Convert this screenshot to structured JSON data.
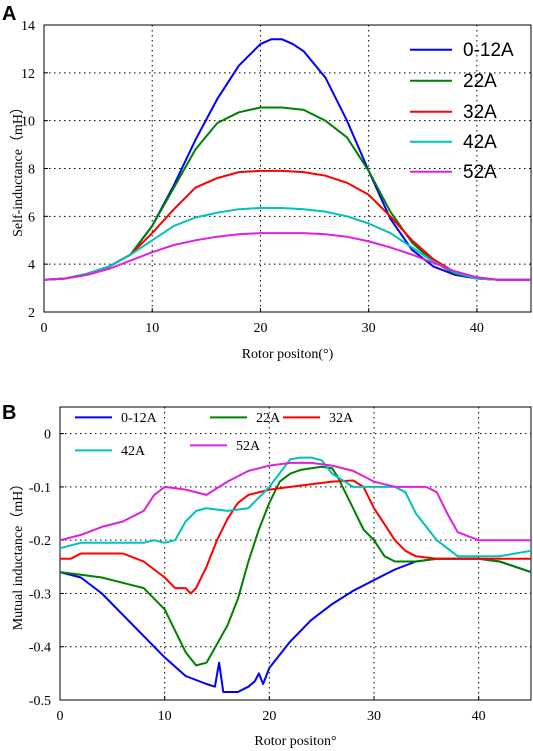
{
  "chart_data": [
    {
      "type": "line",
      "panel": "A",
      "xlabel": "Rotor positon(°)",
      "ylabel": "Self-inductance（mH）",
      "xlim": [
        0,
        45
      ],
      "ylim": [
        2,
        14
      ],
      "xticks": [
        0,
        10,
        20,
        30,
        40
      ],
      "yticks": [
        2,
        4,
        6,
        8,
        10,
        12,
        14
      ],
      "grid": true,
      "legend_position": "top-right",
      "series": [
        {
          "name": "0-12A",
          "color": "#0000ff",
          "x": [
            0,
            2,
            4,
            6,
            8,
            10,
            12,
            14,
            16,
            18,
            20,
            21,
            22,
            23,
            24,
            26,
            28,
            30,
            32,
            34,
            36,
            38,
            40,
            42,
            45
          ],
          "y": [
            3.35,
            3.4,
            3.6,
            3.9,
            4.4,
            5.6,
            7.3,
            9.2,
            10.9,
            12.3,
            13.2,
            13.4,
            13.4,
            13.2,
            12.9,
            11.8,
            10.0,
            7.9,
            5.9,
            4.6,
            3.9,
            3.55,
            3.4,
            3.35,
            3.35
          ]
        },
        {
          "name": "22A",
          "color": "#008000",
          "x": [
            0,
            2,
            4,
            6,
            8,
            10,
            12,
            14,
            16,
            18,
            20,
            22,
            24,
            26,
            28,
            30,
            32,
            34,
            36,
            38,
            40,
            42,
            45
          ],
          "y": [
            3.35,
            3.4,
            3.6,
            3.9,
            4.4,
            5.6,
            7.2,
            8.8,
            9.9,
            10.35,
            10.55,
            10.55,
            10.45,
            10.0,
            9.3,
            7.9,
            6.2,
            4.9,
            4.1,
            3.6,
            3.4,
            3.35,
            3.35
          ]
        },
        {
          "name": "32A",
          "color": "#ff0000",
          "x": [
            0,
            2,
            4,
            6,
            8,
            10,
            12,
            14,
            16,
            18,
            20,
            22,
            24,
            26,
            28,
            30,
            32,
            34,
            36,
            38,
            40,
            42,
            45
          ],
          "y": [
            3.35,
            3.4,
            3.6,
            3.9,
            4.4,
            5.3,
            6.3,
            7.2,
            7.6,
            7.85,
            7.9,
            7.9,
            7.85,
            7.7,
            7.4,
            6.9,
            6.0,
            5.0,
            4.2,
            3.65,
            3.4,
            3.35,
            3.35
          ]
        },
        {
          "name": "42A",
          "color": "#00c0c0",
          "x": [
            0,
            2,
            4,
            6,
            8,
            10,
            12,
            14,
            16,
            18,
            20,
            22,
            24,
            26,
            28,
            30,
            32,
            34,
            36,
            38,
            40,
            42,
            45
          ],
          "y": [
            3.35,
            3.4,
            3.6,
            3.9,
            4.4,
            5.0,
            5.6,
            5.95,
            6.15,
            6.3,
            6.35,
            6.35,
            6.3,
            6.2,
            6.0,
            5.7,
            5.3,
            4.7,
            4.1,
            3.65,
            3.4,
            3.35,
            3.35
          ]
        },
        {
          "name": "52A",
          "color": "#e020e0",
          "x": [
            0,
            2,
            4,
            6,
            8,
            10,
            12,
            14,
            16,
            18,
            20,
            22,
            24,
            26,
            28,
            30,
            32,
            34,
            36,
            38,
            40,
            42,
            45
          ],
          "y": [
            3.35,
            3.4,
            3.55,
            3.8,
            4.15,
            4.5,
            4.8,
            5.0,
            5.15,
            5.25,
            5.3,
            5.3,
            5.3,
            5.25,
            5.15,
            4.95,
            4.7,
            4.4,
            4.05,
            3.7,
            3.45,
            3.35,
            3.35
          ]
        }
      ]
    },
    {
      "type": "line",
      "panel": "B",
      "xlabel": "Rotor positon°",
      "ylabel": "Mutual inductance（mH）",
      "xlim": [
        0,
        45
      ],
      "ylim": [
        -0.5,
        0.05
      ],
      "xticks": [
        0,
        10,
        20,
        30,
        40
      ],
      "yticks": [
        0,
        -0.1,
        -0.2,
        -0.3,
        -0.4,
        -0.5
      ],
      "ytick_labels": [
        "0",
        "-0.1",
        "-0.2",
        "-0.3",
        "-0.4",
        "-0.5"
      ],
      "grid": true,
      "legend_position": "top",
      "series": [
        {
          "name": "0-12A",
          "color": "#0000ff",
          "x": [
            0,
            2,
            4,
            6,
            8,
            10,
            12,
            14,
            14.8,
            15.2,
            15.6,
            17,
            18,
            18.6,
            19,
            19.4,
            20,
            22,
            24,
            26,
            28,
            30,
            32,
            34,
            36,
            38,
            40,
            42,
            45
          ],
          "y": [
            -0.26,
            -0.27,
            -0.3,
            -0.34,
            -0.38,
            -0.42,
            -0.455,
            -0.47,
            -0.475,
            -0.43,
            -0.485,
            -0.485,
            -0.475,
            -0.465,
            -0.45,
            -0.47,
            -0.44,
            -0.39,
            -0.35,
            -0.32,
            -0.295,
            -0.275,
            -0.255,
            -0.24,
            -0.235,
            -0.235,
            -0.235,
            -0.24,
            -0.26
          ]
        },
        {
          "name": "22A",
          "color": "#008000",
          "x": [
            0,
            2,
            4,
            6,
            8,
            10,
            11,
            12,
            13,
            14,
            15,
            16,
            17,
            18,
            19,
            20,
            21,
            22,
            23,
            24,
            25,
            26,
            26.5,
            27,
            28,
            29,
            30,
            31,
            32,
            34,
            36,
            38,
            40,
            42,
            45
          ],
          "y": [
            -0.26,
            -0.265,
            -0.27,
            -0.28,
            -0.29,
            -0.33,
            -0.37,
            -0.41,
            -0.435,
            -0.43,
            -0.395,
            -0.36,
            -0.31,
            -0.24,
            -0.18,
            -0.13,
            -0.09,
            -0.075,
            -0.068,
            -0.065,
            -0.062,
            -0.065,
            -0.08,
            -0.1,
            -0.14,
            -0.18,
            -0.2,
            -0.23,
            -0.24,
            -0.24,
            -0.235,
            -0.235,
            -0.235,
            -0.24,
            -0.26
          ]
        },
        {
          "name": "32A",
          "color": "#ff0000",
          "x": [
            0,
            1,
            2,
            4,
            6,
            8,
            9,
            10,
            11,
            12,
            12.5,
            13,
            14,
            15,
            16,
            17,
            18,
            20,
            22,
            24,
            26,
            28,
            29,
            30,
            31,
            32,
            33,
            34,
            36,
            38,
            40,
            42,
            45
          ],
          "y": [
            -0.235,
            -0.235,
            -0.225,
            -0.225,
            -0.225,
            -0.24,
            -0.255,
            -0.27,
            -0.29,
            -0.29,
            -0.3,
            -0.29,
            -0.25,
            -0.2,
            -0.16,
            -0.13,
            -0.115,
            -0.105,
            -0.1,
            -0.095,
            -0.09,
            -0.088,
            -0.1,
            -0.14,
            -0.17,
            -0.2,
            -0.22,
            -0.23,
            -0.235,
            -0.235,
            -0.235,
            -0.235,
            -0.235
          ]
        },
        {
          "name": "42A",
          "color": "#00c0c0",
          "x": [
            0,
            2,
            4,
            6,
            8,
            9,
            10,
            11,
            12,
            13,
            14,
            16,
            18,
            20,
            22,
            23,
            24,
            25,
            26,
            28,
            30,
            31,
            32,
            33,
            34,
            36,
            38,
            40,
            42,
            45
          ],
          "y": [
            -0.215,
            -0.205,
            -0.205,
            -0.205,
            -0.205,
            -0.2,
            -0.205,
            -0.2,
            -0.165,
            -0.145,
            -0.14,
            -0.145,
            -0.14,
            -0.1,
            -0.048,
            -0.045,
            -0.045,
            -0.05,
            -0.075,
            -0.1,
            -0.1,
            -0.1,
            -0.1,
            -0.11,
            -0.15,
            -0.2,
            -0.23,
            -0.23,
            -0.23,
            -0.22
          ]
        },
        {
          "name": "52A",
          "color": "#e020e0",
          "x": [
            0,
            2,
            4,
            6,
            8,
            9,
            10,
            12,
            14,
            16,
            18,
            20,
            22,
            24,
            26,
            28,
            30,
            32,
            34,
            35,
            36,
            37,
            38,
            40,
            42,
            45
          ],
          "y": [
            -0.2,
            -0.19,
            -0.175,
            -0.165,
            -0.145,
            -0.115,
            -0.1,
            -0.105,
            -0.115,
            -0.09,
            -0.07,
            -0.06,
            -0.055,
            -0.055,
            -0.06,
            -0.07,
            -0.09,
            -0.1,
            -0.1,
            -0.1,
            -0.11,
            -0.15,
            -0.185,
            -0.2,
            -0.2,
            -0.2
          ]
        }
      ]
    }
  ],
  "panel_a_label": "A",
  "panel_b_label": "B"
}
